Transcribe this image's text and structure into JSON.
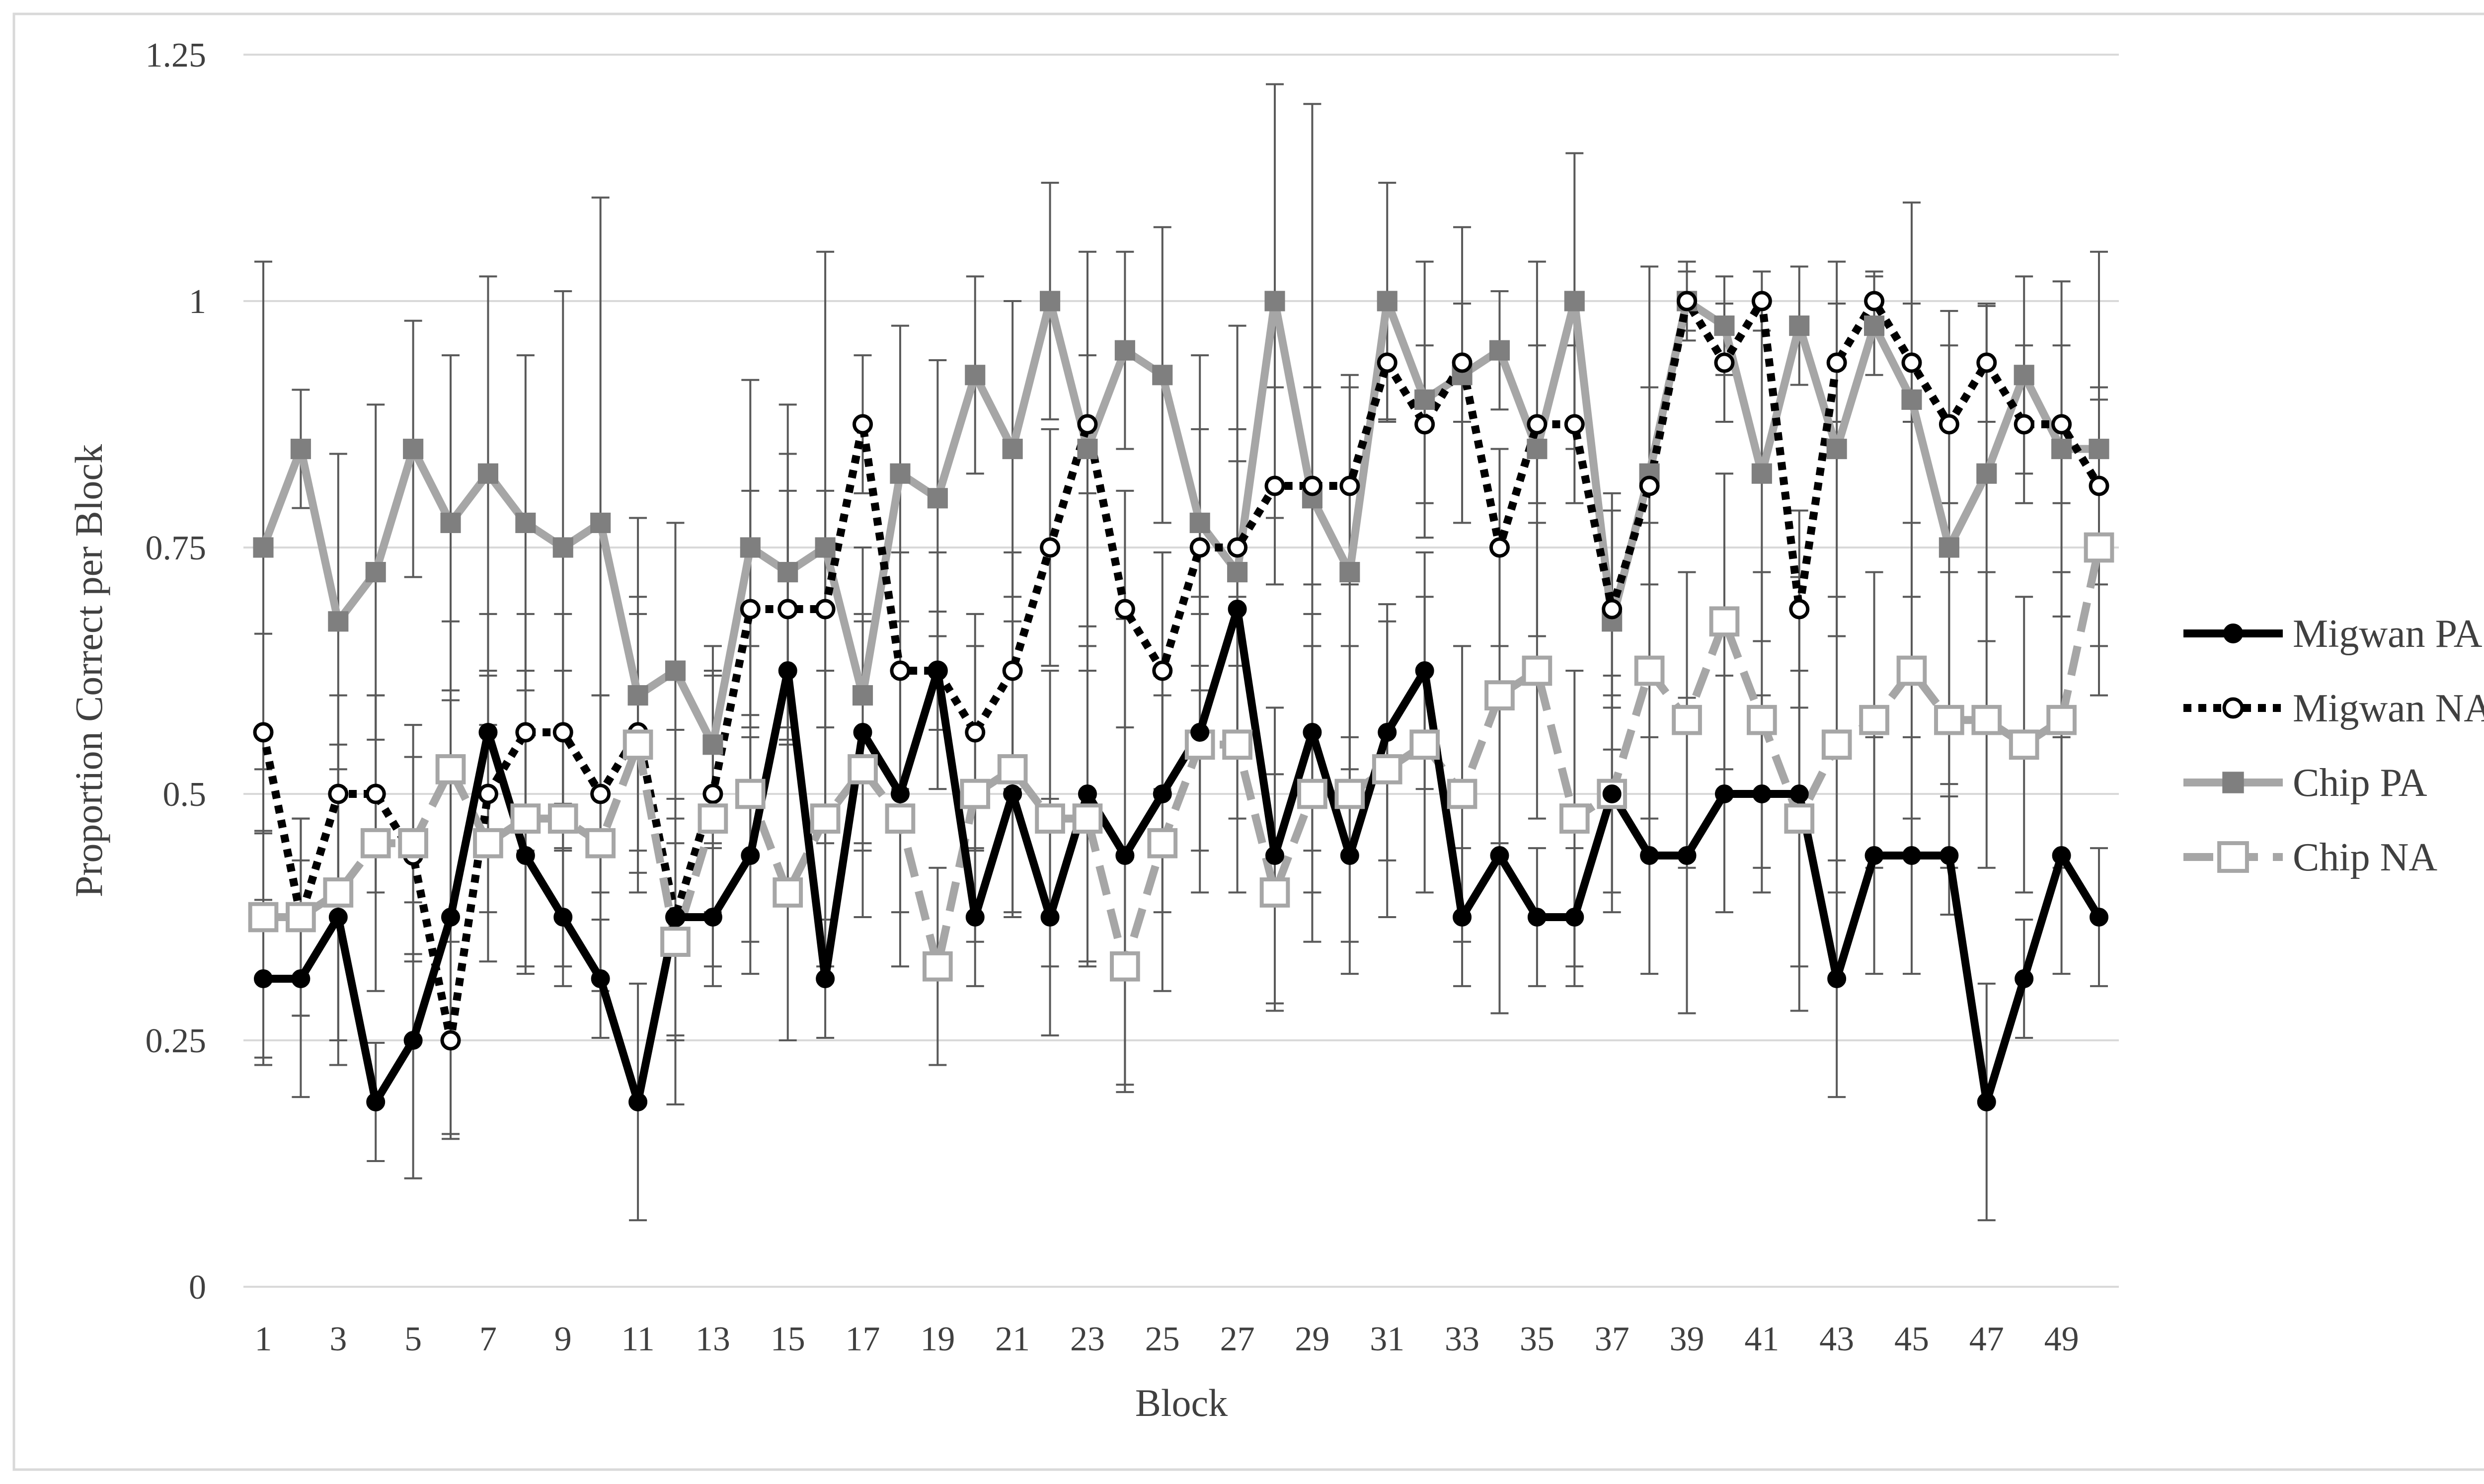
{
  "chart_data": {
    "type": "line",
    "title": "",
    "xlabel": "Block",
    "ylabel": "Proportion Correct per Block",
    "ylim": [
      0,
      1.25
    ],
    "yticks": [
      0,
      0.25,
      0.5,
      0.75,
      1,
      1.25
    ],
    "ytick_labels": [
      "0",
      "0.25",
      "0.5",
      "0.75",
      "1",
      "1.25"
    ],
    "x": [
      1,
      2,
      3,
      4,
      5,
      6,
      7,
      8,
      9,
      10,
      11,
      12,
      13,
      14,
      15,
      16,
      17,
      18,
      19,
      20,
      21,
      22,
      23,
      24,
      25,
      26,
      27,
      28,
      29,
      30,
      31,
      32,
      33,
      34,
      35,
      36,
      37,
      38,
      39,
      40,
      41,
      42,
      43,
      44,
      45,
      46,
      47,
      48,
      49,
      50
    ],
    "xtick_labels": [
      "1",
      "3",
      "5",
      "7",
      "9",
      "11",
      "13",
      "15",
      "17",
      "19",
      "21",
      "23",
      "25",
      "27",
      "29",
      "31",
      "33",
      "35",
      "37",
      "39",
      "41",
      "43",
      "45",
      "47",
      "49"
    ],
    "grid": "horizontal",
    "legend_position": "right",
    "series": [
      {
        "name": "Chip PA",
        "color": "#a6a6a6",
        "style": "solid",
        "marker": "filled-square",
        "values": [
          0.75,
          0.85,
          0.675,
          0.725,
          0.85,
          0.775,
          0.825,
          0.775,
          0.75,
          0.775,
          0.6,
          0.625,
          0.55,
          0.75,
          0.725,
          0.75,
          0.6,
          0.825,
          0.8,
          0.925,
          0.85,
          1.0,
          0.85,
          0.95,
          0.925,
          0.775,
          0.725,
          1.0,
          0.8,
          0.725,
          1.0,
          0.9,
          0.925,
          0.95,
          0.85,
          1.0,
          0.675,
          0.825,
          1.0,
          0.975,
          0.825,
          0.975,
          0.85,
          0.975,
          0.9,
          0.75,
          0.825,
          0.925,
          0.85,
          0.85
        ],
        "error": [
          0.29,
          0.06,
          0.17,
          0.17,
          0.13,
          0.17,
          0.2,
          0.17,
          0.26,
          0.33,
          0.18,
          0.15,
          0.1,
          0.17,
          0.17,
          0.3,
          0.15,
          0.15,
          0.14,
          0.1,
          0.15,
          0.12,
          0.2,
          0.1,
          0.15,
          0.17,
          0.25,
          0.22,
          0.4,
          0.2,
          0.12,
          0.14,
          0.15,
          0.06,
          0.19,
          0.15,
          0.13,
          0.21,
          0.04,
          0.05,
          0.17,
          0.06,
          0.19,
          0.05,
          0.2,
          0.24,
          0.17,
          0.1,
          0.17,
          0.2
        ]
      },
      {
        "name": "Migwan NA",
        "color": "#000000",
        "style": "dotted",
        "marker": "open-circle",
        "values": [
          0.5625,
          0.375,
          0.5,
          0.5,
          0.4375,
          0.25,
          0.5,
          0.5625,
          0.5625,
          0.5,
          0.5625,
          0.375,
          0.5,
          0.6875,
          0.6875,
          0.6875,
          0.875,
          0.625,
          0.625,
          0.5625,
          0.625,
          0.75,
          0.875,
          0.6875,
          0.625,
          0.75,
          0.75,
          0.8125,
          0.8125,
          0.8125,
          0.9375,
          0.875,
          0.9375,
          0.75,
          0.875,
          0.875,
          0.6875,
          0.8125,
          1.0,
          0.9375,
          1.0,
          0.6875,
          0.9375,
          1.0,
          0.9375,
          0.875,
          0.9375,
          0.875,
          0.875,
          0.8125
        ],
        "error": [
          0.1,
          0.1,
          0.1,
          0.1,
          0.1,
          0.1,
          0.12,
          0.12,
          0.12,
          0.1,
          0.12,
          0.12,
          0.12,
          0.12,
          0.12,
          0.12,
          0.07,
          0.12,
          0.12,
          0.12,
          0.12,
          0.12,
          0.07,
          0.12,
          0.12,
          0.12,
          0.12,
          0.1,
          0.1,
          0.1,
          0.06,
          0.08,
          0.06,
          0.1,
          0.08,
          0.08,
          0.1,
          0.1,
          0.03,
          0.06,
          0.03,
          0.1,
          0.06,
          0.03,
          0.06,
          0.08,
          0.06,
          0.08,
          0.08,
          0.1
        ]
      },
      {
        "name": "Chip NA",
        "color": "#a6a6a6",
        "style": "dashed",
        "marker": "open-square",
        "values": [
          0.375,
          0.375,
          0.4,
          0.45,
          0.45,
          0.525,
          0.45,
          0.475,
          0.475,
          0.45,
          0.55,
          0.35,
          0.475,
          0.5,
          0.4,
          0.475,
          0.525,
          0.475,
          0.325,
          0.5,
          0.525,
          0.475,
          0.475,
          0.325,
          0.45,
          0.55,
          0.55,
          0.4,
          0.5,
          0.5,
          0.525,
          0.55,
          0.5,
          0.6,
          0.625,
          0.475,
          0.5,
          0.625,
          0.575,
          0.675,
          0.575,
          0.475,
          0.55,
          0.575,
          0.625,
          0.575,
          0.575,
          0.55,
          0.575,
          0.75
        ],
        "error": [
          0.15,
          0.1,
          0.15,
          0.15,
          0.12,
          0.15,
          0.12,
          0.15,
          0.15,
          0.15,
          0.15,
          0.1,
          0.15,
          0.15,
          0.15,
          0.15,
          0.15,
          0.15,
          0.1,
          0.15,
          0.15,
          0.15,
          0.15,
          0.12,
          0.15,
          0.15,
          0.15,
          0.12,
          0.15,
          0.15,
          0.15,
          0.15,
          0.15,
          0.15,
          0.15,
          0.15,
          0.1,
          0.15,
          0.15,
          0.15,
          0.15,
          0.15,
          0.15,
          0.15,
          0.15,
          0.15,
          0.15,
          0.15,
          0.15,
          0.15
        ]
      },
      {
        "name": "Migwan PA",
        "color": "#000000",
        "style": "solid",
        "marker": "filled-circle",
        "values": [
          0.3125,
          0.3125,
          0.375,
          0.1875,
          0.25,
          0.375,
          0.5625,
          0.4375,
          0.375,
          0.3125,
          0.1875,
          0.375,
          0.375,
          0.4375,
          0.625,
          0.3125,
          0.5625,
          0.5,
          0.625,
          0.375,
          0.5,
          0.375,
          0.5,
          0.4375,
          0.5,
          0.5625,
          0.6875,
          0.4375,
          0.5625,
          0.4375,
          0.5625,
          0.625,
          0.375,
          0.4375,
          0.375,
          0.375,
          0.5,
          0.4375,
          0.4375,
          0.5,
          0.5,
          0.5,
          0.3125,
          0.4375,
          0.4375,
          0.4375,
          0.1875,
          0.3125,
          0.4375,
          0.375
        ],
        "error": [
          0.08,
          0.12,
          0.15,
          0.06,
          0.14,
          0.22,
          0.12,
          0.12,
          0.07,
          0.06,
          0.12,
          0.19,
          0.07,
          0.12,
          0.22,
          0.06,
          0.12,
          0.12,
          0.06,
          0.07,
          0.12,
          0.12,
          0.17,
          0.24,
          0.12,
          0.12,
          0.15,
          0.15,
          0.12,
          0.12,
          0.13,
          0.12,
          0.07,
          0.16,
          0.07,
          0.07,
          0.12,
          0.12,
          0.16,
          0.12,
          0.1,
          0.22,
          0.12,
          0.12,
          0.12,
          0.06,
          0.12,
          0.06,
          0.12,
          0.07
        ]
      }
    ],
    "legend_order": [
      "Migwan PA",
      "Migwan NA",
      "Chip PA",
      "Chip NA"
    ]
  }
}
